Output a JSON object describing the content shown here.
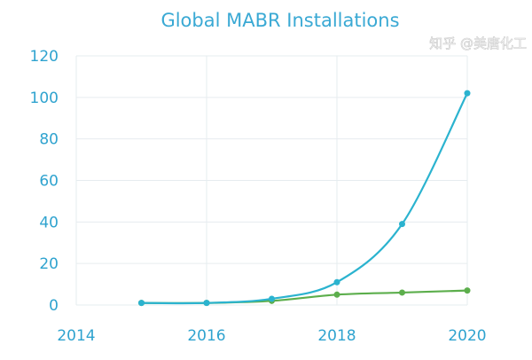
{
  "chart_data": {
    "type": "line",
    "title": "Global MABR Installations",
    "xlabel": "",
    "ylabel": "",
    "x": [
      2015,
      2016,
      2017,
      2018,
      2019,
      2020
    ],
    "xlim": [
      2014,
      2020
    ],
    "ylim": [
      0,
      120
    ],
    "x_ticks": [
      "2014",
      "2016",
      "2018",
      "2020"
    ],
    "y_ticks": [
      "0",
      "20",
      "40",
      "60",
      "80",
      "100",
      "120"
    ],
    "grid": true,
    "smoothed": true,
    "series": [
      {
        "values": [
          1,
          1,
          3,
          11,
          39,
          102
        ],
        "color": "#2bb3cf"
      },
      {
        "values": [
          1,
          1,
          2,
          5,
          6,
          7
        ],
        "color": "#5cae4c"
      }
    ]
  },
  "watermark": "知乎 @美唐化工"
}
